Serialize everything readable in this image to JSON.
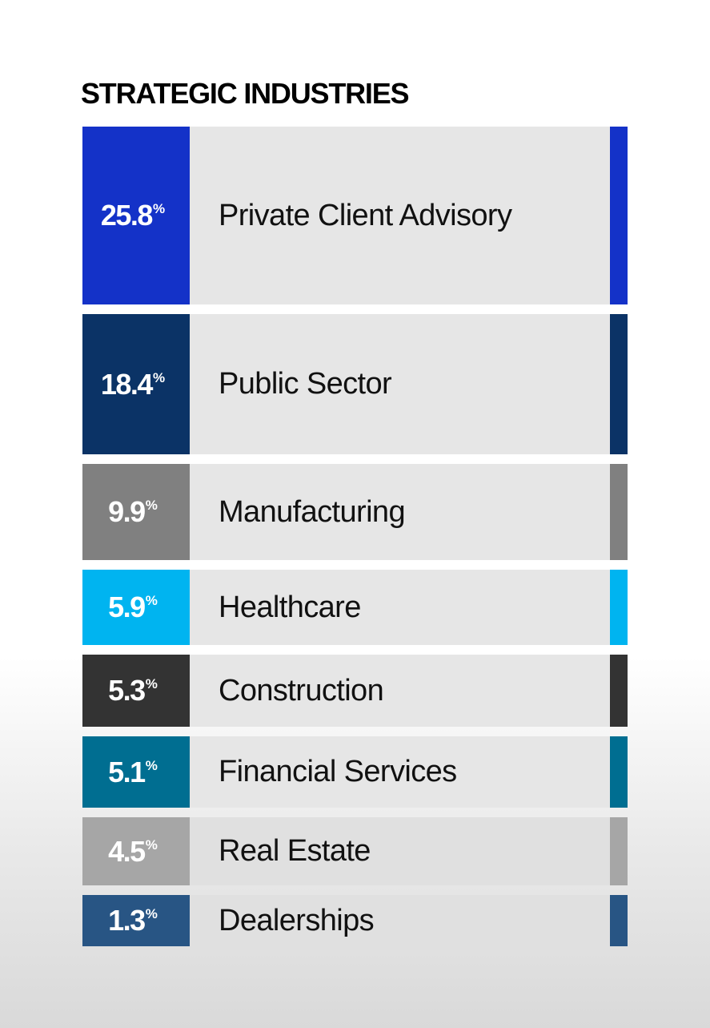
{
  "chart_data": {
    "type": "bar",
    "title": "STRATEGIC INDUSTRIES",
    "unit": "%",
    "categories": [
      "Private Client Advisory",
      "Public Sector",
      "Manufacturing",
      "Healthcare",
      "Construction",
      "Financial Services",
      "Real Estate",
      "Dealerships"
    ],
    "values": [
      25.8,
      18.4,
      9.9,
      5.9,
      5.3,
      5.1,
      4.5,
      1.3
    ],
    "value_labels": [
      "25.8",
      "18.4",
      "9.9",
      "5.9",
      "5.3",
      "5.1",
      "4.5",
      "1.3"
    ],
    "colors": [
      "#1432c8",
      "#0b3366",
      "#808080",
      "#00b4f0",
      "#333333",
      "#006e91",
      "#a6a6a6",
      "#285584"
    ],
    "legend": "none",
    "grid": false
  }
}
